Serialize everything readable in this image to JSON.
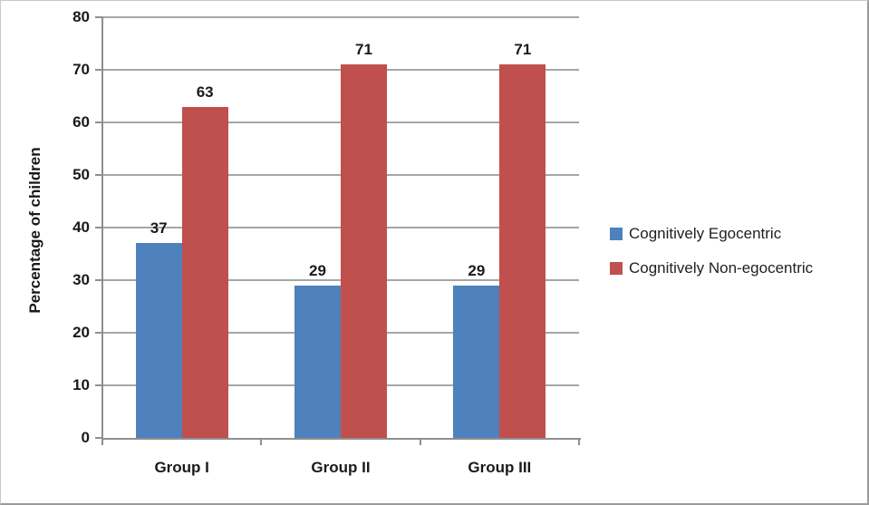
{
  "chart_data": {
    "type": "bar",
    "title": "",
    "ylabel": "Percentage of children",
    "xlabel": "",
    "categories": [
      "Group I",
      "Group II",
      "Group III"
    ],
    "series": [
      {
        "name": "Cognitively Egocentric",
        "color": "#4F81BD",
        "values": [
          37,
          29,
          29
        ]
      },
      {
        "name": "Cognitively Non-egocentric",
        "color": "#C0504D",
        "values": [
          63,
          71,
          71
        ]
      }
    ],
    "ylim": [
      0,
      80
    ],
    "yticks": [
      0,
      10,
      20,
      30,
      40,
      50,
      60,
      70,
      80
    ],
    "grid": true,
    "data_labels": true,
    "legend_position": "right"
  }
}
